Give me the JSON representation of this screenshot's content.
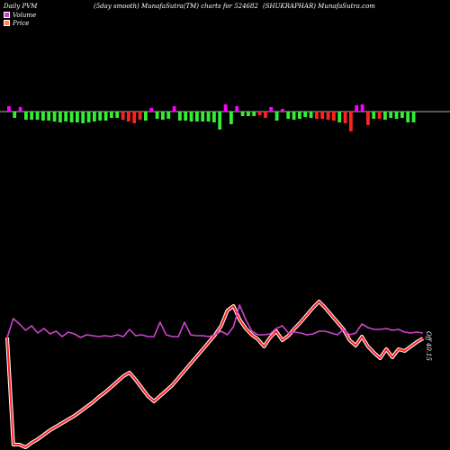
{
  "header": {
    "left": "Daily PVM",
    "center": "(5day smooth) MunafaSutra(TM) charts for 524682",
    "right": "(SHUKRAPHAR) MunafaSutra.com"
  },
  "legend": [
    {
      "label": "Volume",
      "color": "#cc44cc"
    },
    {
      "label": "Price",
      "color": "#ff8844"
    }
  ],
  "colors": {
    "up_volume": "#ff00ff",
    "down_volume": "#33ee33",
    "red_volume": "#ff2222",
    "price_line": "#ff2020",
    "smooth_line": "#cc44cc",
    "axis": "#aaaaaa"
  },
  "chart_data": {
    "type": "line",
    "last_price_label": "40.15",
    "last_price_prefix": "Off",
    "volume_bars": [
      {
        "v": 6,
        "c": "up"
      },
      {
        "v": -7,
        "c": "down"
      },
      {
        "v": 5,
        "c": "up"
      },
      {
        "v": -9,
        "c": "down"
      },
      {
        "v": -9,
        "c": "down"
      },
      {
        "v": -9,
        "c": "down"
      },
      {
        "v": -10,
        "c": "down"
      },
      {
        "v": -10,
        "c": "down"
      },
      {
        "v": -11,
        "c": "down"
      },
      {
        "v": -12,
        "c": "down"
      },
      {
        "v": -11,
        "c": "down"
      },
      {
        "v": -12,
        "c": "down"
      },
      {
        "v": -12,
        "c": "down"
      },
      {
        "v": -13,
        "c": "down"
      },
      {
        "v": -12,
        "c": "down"
      },
      {
        "v": -11,
        "c": "down"
      },
      {
        "v": -10,
        "c": "down"
      },
      {
        "v": -10,
        "c": "down"
      },
      {
        "v": -7,
        "c": "down"
      },
      {
        "v": -7,
        "c": "down"
      },
      {
        "v": -9,
        "c": "red"
      },
      {
        "v": -11,
        "c": "red"
      },
      {
        "v": -13,
        "c": "red"
      },
      {
        "v": -9,
        "c": "red"
      },
      {
        "v": -10,
        "c": "down"
      },
      {
        "v": 4,
        "c": "up"
      },
      {
        "v": -8,
        "c": "down"
      },
      {
        "v": -9,
        "c": "down"
      },
      {
        "v": -8,
        "c": "down"
      },
      {
        "v": 6,
        "c": "up"
      },
      {
        "v": -10,
        "c": "down"
      },
      {
        "v": -10,
        "c": "down"
      },
      {
        "v": -11,
        "c": "down"
      },
      {
        "v": -11,
        "c": "down"
      },
      {
        "v": -11,
        "c": "down"
      },
      {
        "v": -11,
        "c": "down"
      },
      {
        "v": -12,
        "c": "down"
      },
      {
        "v": -20,
        "c": "down"
      },
      {
        "v": 8,
        "c": "up"
      },
      {
        "v": -14,
        "c": "down"
      },
      {
        "v": 6,
        "c": "up"
      },
      {
        "v": -5,
        "c": "down"
      },
      {
        "v": -5,
        "c": "down"
      },
      {
        "v": -5,
        "c": "down"
      },
      {
        "v": -4,
        "c": "red"
      },
      {
        "v": -7,
        "c": "red"
      },
      {
        "v": 5,
        "c": "up"
      },
      {
        "v": -10,
        "c": "down"
      },
      {
        "v": 3,
        "c": "up"
      },
      {
        "v": -8,
        "c": "down"
      },
      {
        "v": -9,
        "c": "down"
      },
      {
        "v": -8,
        "c": "down"
      },
      {
        "v": -6,
        "c": "down"
      },
      {
        "v": -7,
        "c": "down"
      },
      {
        "v": -8,
        "c": "red"
      },
      {
        "v": -8,
        "c": "red"
      },
      {
        "v": -9,
        "c": "red"
      },
      {
        "v": -10,
        "c": "red"
      },
      {
        "v": -12,
        "c": "down"
      },
      {
        "v": -13,
        "c": "red"
      },
      {
        "v": -22,
        "c": "red"
      },
      {
        "v": 7,
        "c": "up"
      },
      {
        "v": 8,
        "c": "up"
      },
      {
        "v": -15,
        "c": "red"
      },
      {
        "v": -8,
        "c": "down"
      },
      {
        "v": -8,
        "c": "red"
      },
      {
        "v": -9,
        "c": "down"
      },
      {
        "v": -7,
        "c": "down"
      },
      {
        "v": -8,
        "c": "down"
      },
      {
        "v": -7,
        "c": "down"
      },
      {
        "v": -12,
        "c": "down"
      },
      {
        "v": -12,
        "c": "down"
      }
    ],
    "price": [
      375,
      494,
      494,
      497,
      492,
      488,
      483,
      478,
      474,
      470,
      466,
      462,
      457,
      452,
      447,
      441,
      436,
      430,
      424,
      418,
      414,
      422,
      431,
      440,
      446,
      440,
      434,
      428,
      420,
      412,
      404,
      396,
      388,
      380,
      372,
      362,
      345,
      340,
      355,
      365,
      372,
      377,
      385,
      375,
      368,
      378,
      373,
      365,
      358,
      350,
      342,
      335,
      342,
      350,
      358,
      366,
      378,
      384,
      374,
      385,
      392,
      398,
      388,
      397,
      388,
      390,
      385,
      380,
      376
    ],
    "smooth": [
      375,
      354,
      360,
      367,
      362,
      370,
      365,
      371,
      368,
      374,
      369,
      371,
      375,
      372,
      373,
      374,
      373,
      374,
      372,
      374,
      366,
      373,
      372,
      374,
      374,
      358,
      372,
      374,
      374,
      358,
      372,
      373,
      373,
      374,
      372,
      368,
      372,
      363,
      339,
      355,
      368,
      372,
      372,
      371,
      365,
      362,
      370,
      369,
      370,
      372,
      371,
      368,
      368,
      370,
      372,
      366,
      372,
      370,
      360,
      364,
      366,
      366,
      365,
      367,
      366,
      369,
      370,
      369,
      370
    ]
  }
}
